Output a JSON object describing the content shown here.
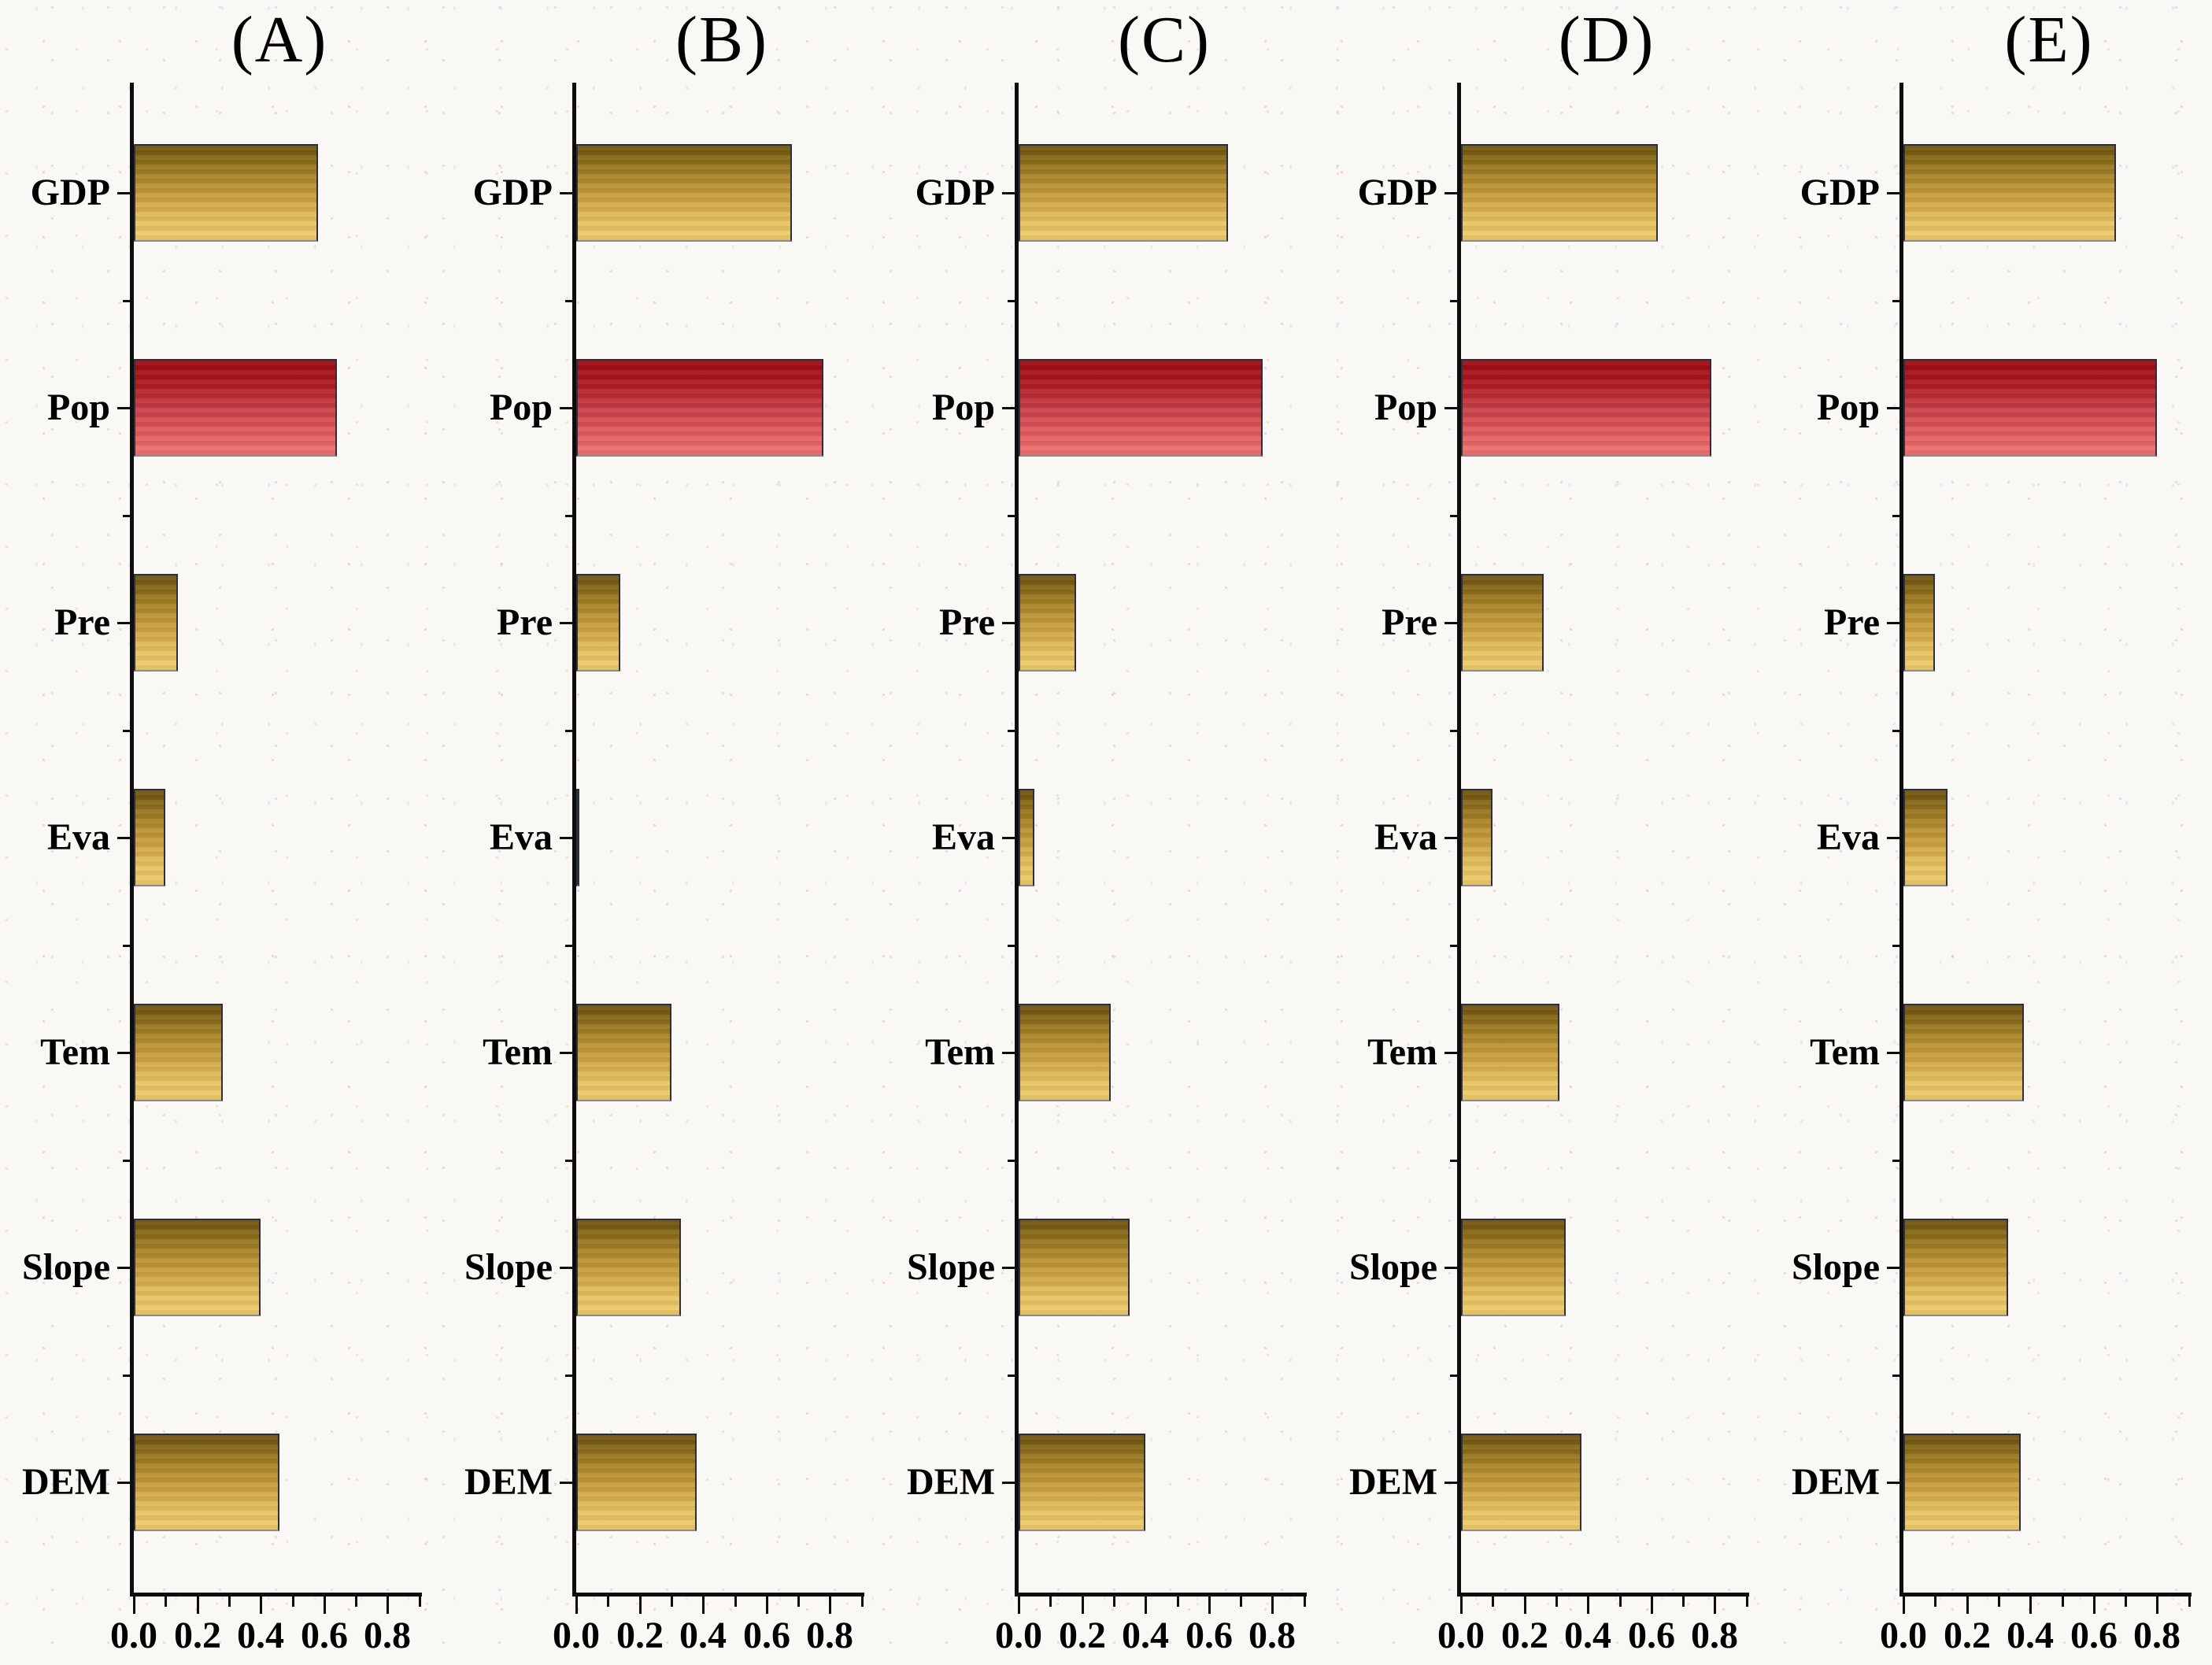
{
  "chart_data": [
    {
      "type": "bar",
      "orientation": "horizontal",
      "title": "(A)",
      "categories": [
        "GDP",
        "Pop",
        "Pre",
        "Eva",
        "Tem",
        "Slope",
        "DEM"
      ],
      "values": [
        0.58,
        0.64,
        0.14,
        0.1,
        0.28,
        0.4,
        0.46
      ],
      "highlight_category": "Pop",
      "xlim": [
        0,
        0.9
      ],
      "xticks": [
        0.0,
        0.2,
        0.4,
        0.6,
        0.8
      ],
      "xtick_labels": [
        "0.0",
        "0.2",
        "0.4",
        "0.6",
        "0.8"
      ],
      "xticks_minor": [
        0.1,
        0.3,
        0.5,
        0.7,
        0.9
      ],
      "grid": false,
      "legend": "none"
    },
    {
      "type": "bar",
      "orientation": "horizontal",
      "title": "(B)",
      "categories": [
        "GDP",
        "Pop",
        "Pre",
        "Eva",
        "Tem",
        "Slope",
        "DEM"
      ],
      "values": [
        0.68,
        0.78,
        0.14,
        0.01,
        0.3,
        0.33,
        0.38
      ],
      "highlight_category": "Pop",
      "xlim": [
        0,
        0.9
      ],
      "xticks": [
        0.0,
        0.2,
        0.4,
        0.6,
        0.8
      ],
      "xtick_labels": [
        "0.0",
        "0.2",
        "0.4",
        "0.6",
        "0.8"
      ],
      "xticks_minor": [
        0.1,
        0.3,
        0.5,
        0.7,
        0.9
      ],
      "grid": false,
      "legend": "none"
    },
    {
      "type": "bar",
      "orientation": "horizontal",
      "title": "(C)",
      "categories": [
        "GDP",
        "Pop",
        "Pre",
        "Eva",
        "Tem",
        "Slope",
        "DEM"
      ],
      "values": [
        0.66,
        0.77,
        0.18,
        0.05,
        0.29,
        0.35,
        0.4
      ],
      "highlight_category": "Pop",
      "xlim": [
        0,
        0.9
      ],
      "xticks": [
        0.0,
        0.2,
        0.4,
        0.6,
        0.8
      ],
      "xtick_labels": [
        "0.0",
        "0.2",
        "0.4",
        "0.6",
        "0.8"
      ],
      "xticks_minor": [
        0.1,
        0.3,
        0.5,
        0.7,
        0.9
      ],
      "grid": false,
      "legend": "none"
    },
    {
      "type": "bar",
      "orientation": "horizontal",
      "title": "(D)",
      "categories": [
        "GDP",
        "Pop",
        "Pre",
        "Eva",
        "Tem",
        "Slope",
        "DEM"
      ],
      "values": [
        0.62,
        0.79,
        0.26,
        0.1,
        0.31,
        0.33,
        0.38
      ],
      "highlight_category": "Pop",
      "xlim": [
        0,
        0.9
      ],
      "xticks": [
        0.0,
        0.2,
        0.4,
        0.6,
        0.8
      ],
      "xtick_labels": [
        "0.0",
        "0.2",
        "0.4",
        "0.6",
        "0.8"
      ],
      "xticks_minor": [
        0.1,
        0.3,
        0.5,
        0.7,
        0.9
      ],
      "grid": false,
      "legend": "none"
    },
    {
      "type": "bar",
      "orientation": "horizontal",
      "title": "(E)",
      "categories": [
        "GDP",
        "Pop",
        "Pre",
        "Eva",
        "Tem",
        "Slope",
        "DEM"
      ],
      "values": [
        0.67,
        0.8,
        0.1,
        0.14,
        0.38,
        0.33,
        0.37
      ],
      "highlight_category": "Pop",
      "xlim": [
        0,
        0.9
      ],
      "xticks": [
        0.0,
        0.2,
        0.4,
        0.6,
        0.8
      ],
      "xtick_labels": [
        "0.0",
        "0.2",
        "0.4",
        "0.6",
        "0.8"
      ],
      "xticks_minor": [
        0.1,
        0.3,
        0.5,
        0.7,
        0.9
      ],
      "grid": false,
      "legend": "none"
    }
  ],
  "style": {
    "gold_gradient": [
      "#6a510d",
      "#93721e",
      "#b78f31",
      "#d0a644",
      "#e7c261",
      "#eecb6c"
    ],
    "red_gradient": [
      "#9a0b11",
      "#b01820",
      "#c63f46",
      "#e0585b",
      "#f17572"
    ],
    "bar_border": "#2e2e3e",
    "axis_color": "#0d0d0d",
    "text_color": "#000000",
    "background": "#faf8f4"
  }
}
